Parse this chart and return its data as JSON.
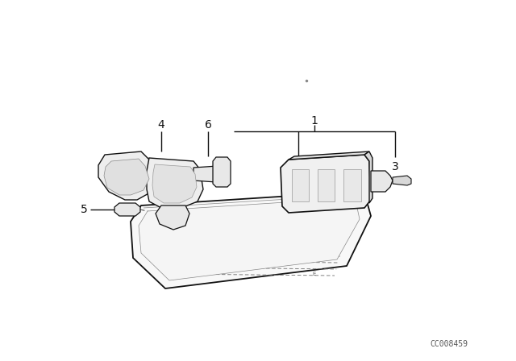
{
  "bg_color": "#ffffff",
  "line_color": "#111111",
  "watermark": "CC008459",
  "fig_width": 6.4,
  "fig_height": 4.48,
  "dpi": 100
}
